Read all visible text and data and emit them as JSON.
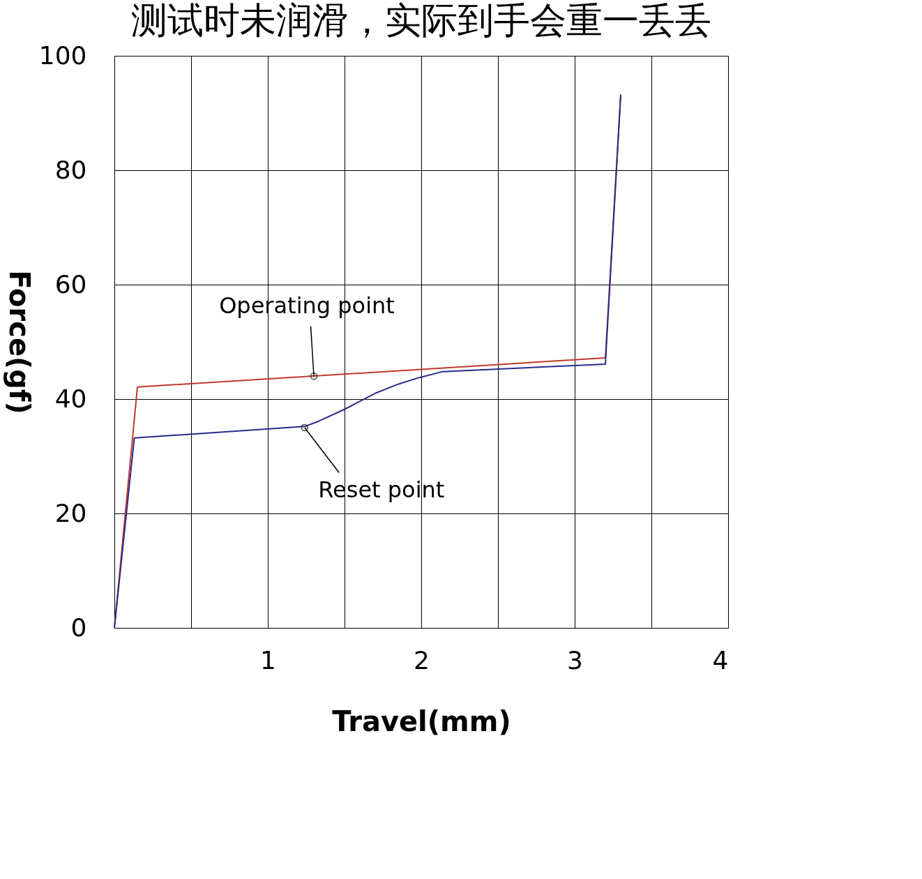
{
  "chart_data": {
    "type": "line",
    "title": "测试时未润滑，实际到手会重一丢丢",
    "xlabel": "Travel(mm)",
    "ylabel": "Force(gf)",
    "series": [
      {
        "color": "#c0392b",
        "x": [
          0,
          0.15,
          3.2,
          3.3
        ],
        "values": [
          0,
          42.1,
          47.2,
          93.2
        ]
      },
      {
        "color": "#2b2b8c",
        "x": [
          0,
          0.13,
          1.24,
          1.32,
          1.5,
          1.7,
          1.85,
          1.98,
          2.14,
          3.2,
          3.3
        ],
        "values": [
          0,
          33.2,
          35.2,
          36.0,
          38.2,
          41.0,
          42.6,
          43.7,
          44.8,
          46.1,
          93.2
        ]
      }
    ],
    "annotations": [
      {
        "text": "Operating point",
        "x": 1.3,
        "y": 44.0
      },
      {
        "text": "Reset point",
        "x": 1.24,
        "y": 35.0
      }
    ],
    "xlim": [
      0,
      4
    ],
    "ylim": [
      0,
      100
    ],
    "xticks": [
      {
        "value": 0,
        "label": null
      },
      {
        "value": 0.5,
        "label": null
      },
      1,
      {
        "value": 1.5,
        "label": null
      },
      2,
      {
        "value": 2.5,
        "label": null
      },
      3,
      {
        "value": 3.5,
        "label": null
      },
      4
    ],
    "yticks": [
      0,
      20,
      40,
      60,
      80,
      100
    ],
    "grid": true,
    "marker": "none",
    "line_style": "solid"
  }
}
